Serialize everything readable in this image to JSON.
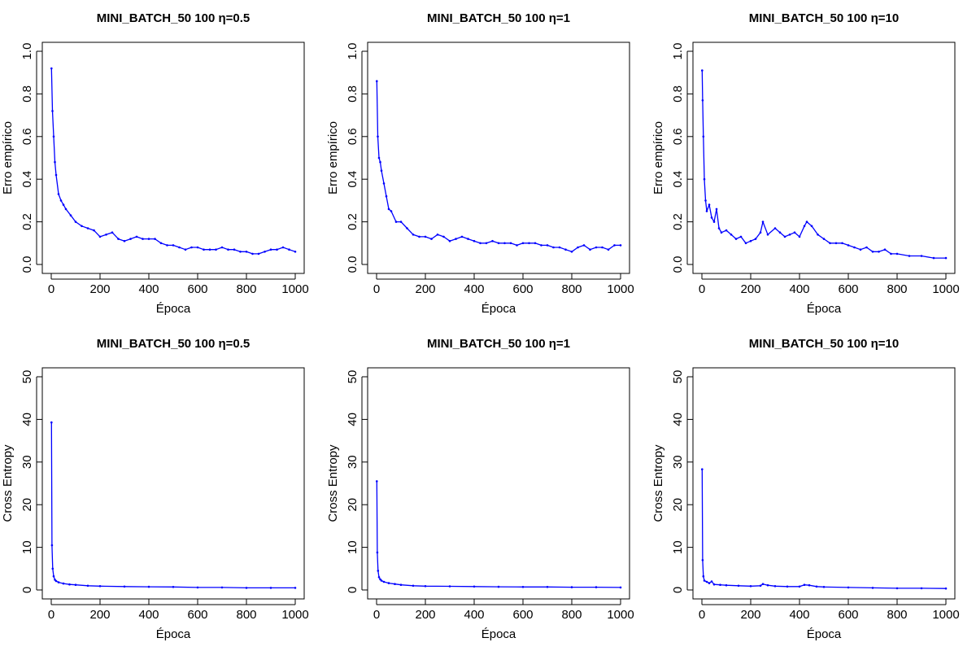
{
  "colors": {
    "series": "#0000ff",
    "axes": "#000000",
    "background": "#ffffff"
  },
  "chart_data": [
    {
      "type": "line",
      "title": "MINI_BATCH_50 100 η=0.5",
      "xlabel": "Época",
      "ylabel": "Erro empírico",
      "xlim": [
        0,
        1000
      ],
      "ylim": [
        0,
        1.0
      ],
      "xticks": [
        0,
        200,
        400,
        600,
        800,
        1000
      ],
      "yticks": [
        0,
        0.2,
        0.4,
        0.6,
        0.8,
        1.0
      ],
      "ytick_labels": [
        "0.0",
        "0.2",
        "0.4",
        "0.6",
        "0.8",
        "1.0"
      ],
      "grid": false,
      "series": [
        {
          "x": [
            1,
            5,
            10,
            15,
            20,
            30,
            40,
            50,
            60,
            80,
            100,
            125,
            150,
            175,
            200,
            225,
            250,
            275,
            300,
            325,
            350,
            375,
            400,
            425,
            450,
            475,
            500,
            525,
            550,
            575,
            600,
            625,
            650,
            675,
            700,
            725,
            750,
            775,
            800,
            825,
            850,
            875,
            900,
            925,
            950,
            975,
            1000
          ],
          "y": [
            0.92,
            0.72,
            0.6,
            0.48,
            0.42,
            0.33,
            0.3,
            0.28,
            0.26,
            0.23,
            0.2,
            0.18,
            0.17,
            0.16,
            0.13,
            0.14,
            0.15,
            0.12,
            0.11,
            0.12,
            0.13,
            0.12,
            0.12,
            0.12,
            0.1,
            0.09,
            0.09,
            0.08,
            0.07,
            0.08,
            0.08,
            0.07,
            0.07,
            0.07,
            0.08,
            0.07,
            0.07,
            0.06,
            0.06,
            0.05,
            0.05,
            0.06,
            0.07,
            0.07,
            0.08,
            0.07,
            0.06
          ]
        }
      ]
    },
    {
      "type": "line",
      "title": "MINI_BATCH_50 100 η=1",
      "xlabel": "Época",
      "ylabel": "Erro empírico",
      "xlim": [
        0,
        1000
      ],
      "ylim": [
        0,
        1.0
      ],
      "xticks": [
        0,
        200,
        400,
        600,
        800,
        1000
      ],
      "yticks": [
        0,
        0.2,
        0.4,
        0.6,
        0.8,
        1.0
      ],
      "ytick_labels": [
        "0.0",
        "0.2",
        "0.4",
        "0.6",
        "0.8",
        "1.0"
      ],
      "grid": false,
      "series": [
        {
          "x": [
            1,
            5,
            10,
            15,
            20,
            30,
            40,
            50,
            60,
            80,
            100,
            125,
            150,
            175,
            200,
            225,
            250,
            275,
            300,
            325,
            350,
            375,
            400,
            425,
            450,
            475,
            500,
            525,
            550,
            575,
            600,
            625,
            650,
            675,
            700,
            725,
            750,
            775,
            800,
            825,
            850,
            875,
            900,
            925,
            950,
            975,
            1000
          ],
          "y": [
            0.86,
            0.6,
            0.5,
            0.48,
            0.44,
            0.38,
            0.32,
            0.26,
            0.25,
            0.2,
            0.2,
            0.17,
            0.14,
            0.13,
            0.13,
            0.12,
            0.14,
            0.13,
            0.11,
            0.12,
            0.13,
            0.12,
            0.11,
            0.1,
            0.1,
            0.11,
            0.1,
            0.1,
            0.1,
            0.09,
            0.1,
            0.1,
            0.1,
            0.09,
            0.09,
            0.08,
            0.08,
            0.07,
            0.06,
            0.08,
            0.09,
            0.07,
            0.08,
            0.08,
            0.07,
            0.09,
            0.09
          ]
        }
      ]
    },
    {
      "type": "line",
      "title": "MINI_BATCH_50 100 η=10",
      "xlabel": "Época",
      "ylabel": "Erro empírico",
      "xlim": [
        0,
        1000
      ],
      "ylim": [
        0,
        1.0
      ],
      "xticks": [
        0,
        200,
        400,
        600,
        800,
        1000
      ],
      "yticks": [
        0,
        0.2,
        0.4,
        0.6,
        0.8,
        1.0
      ],
      "ytick_labels": [
        "0.0",
        "0.2",
        "0.4",
        "0.6",
        "0.8",
        "1.0"
      ],
      "grid": false,
      "series": [
        {
          "x": [
            1,
            3,
            6,
            10,
            15,
            20,
            30,
            40,
            50,
            60,
            70,
            80,
            100,
            120,
            140,
            160,
            180,
            200,
            220,
            240,
            250,
            270,
            300,
            320,
            340,
            360,
            380,
            400,
            420,
            430,
            450,
            475,
            500,
            525,
            550,
            575,
            600,
            625,
            650,
            675,
            700,
            725,
            750,
            775,
            800,
            850,
            900,
            950,
            1000
          ],
          "y": [
            0.91,
            0.77,
            0.6,
            0.4,
            0.3,
            0.25,
            0.28,
            0.22,
            0.2,
            0.26,
            0.17,
            0.15,
            0.16,
            0.14,
            0.12,
            0.13,
            0.1,
            0.11,
            0.12,
            0.15,
            0.2,
            0.14,
            0.17,
            0.15,
            0.13,
            0.14,
            0.15,
            0.13,
            0.18,
            0.2,
            0.18,
            0.14,
            0.12,
            0.1,
            0.1,
            0.1,
            0.09,
            0.08,
            0.07,
            0.08,
            0.06,
            0.06,
            0.07,
            0.05,
            0.05,
            0.04,
            0.04,
            0.03,
            0.03
          ]
        }
      ]
    },
    {
      "type": "line",
      "title": "MINI_BATCH_50 100 η=0.5",
      "xlabel": "Época",
      "ylabel": "Cross Entropy",
      "xlim": [
        0,
        1000
      ],
      "ylim": [
        0,
        50
      ],
      "xticks": [
        0,
        200,
        400,
        600,
        800,
        1000
      ],
      "yticks": [
        0,
        10,
        20,
        30,
        40,
        50
      ],
      "ytick_labels": [
        "0",
        "10",
        "20",
        "30",
        "40",
        "50"
      ],
      "grid": false,
      "series": [
        {
          "x": [
            1,
            3,
            6,
            10,
            15,
            20,
            30,
            50,
            75,
            100,
            150,
            200,
            300,
            400,
            500,
            600,
            700,
            800,
            900,
            1000
          ],
          "y": [
            39.3,
            10.5,
            5.0,
            3.2,
            2.4,
            2.1,
            1.8,
            1.5,
            1.3,
            1.2,
            1.0,
            0.9,
            0.8,
            0.75,
            0.7,
            0.6,
            0.6,
            0.5,
            0.5,
            0.5
          ]
        }
      ]
    },
    {
      "type": "line",
      "title": "MINI_BATCH_50 100 η=1",
      "xlabel": "Época",
      "ylabel": "Cross Entropy",
      "xlim": [
        0,
        1000
      ],
      "ylim": [
        0,
        50
      ],
      "xticks": [
        0,
        200,
        400,
        600,
        800,
        1000
      ],
      "yticks": [
        0,
        10,
        20,
        30,
        40,
        50
      ],
      "ytick_labels": [
        "0",
        "10",
        "20",
        "30",
        "40",
        "50"
      ],
      "grid": false,
      "series": [
        {
          "x": [
            1,
            3,
            6,
            10,
            15,
            20,
            30,
            50,
            75,
            100,
            150,
            200,
            300,
            400,
            500,
            600,
            700,
            800,
            900,
            1000
          ],
          "y": [
            25.5,
            8.8,
            4.5,
            3.0,
            2.5,
            2.2,
            1.9,
            1.6,
            1.4,
            1.2,
            1.0,
            0.9,
            0.85,
            0.8,
            0.75,
            0.7,
            0.7,
            0.65,
            0.65,
            0.6
          ]
        }
      ]
    },
    {
      "type": "line",
      "title": "MINI_BATCH_50 100 η=10",
      "xlabel": "Época",
      "ylabel": "Cross Entropy",
      "xlim": [
        0,
        1000
      ],
      "ylim": [
        0,
        50
      ],
      "xticks": [
        0,
        200,
        400,
        600,
        800,
        1000
      ],
      "yticks": [
        0,
        10,
        20,
        30,
        40,
        50
      ],
      "ytick_labels": [
        "0",
        "10",
        "20",
        "30",
        "40",
        "50"
      ],
      "grid": false,
      "series": [
        {
          "x": [
            1,
            3,
            6,
            10,
            20,
            30,
            40,
            50,
            75,
            100,
            150,
            200,
            240,
            250,
            270,
            300,
            350,
            400,
            420,
            440,
            470,
            500,
            600,
            700,
            800,
            900,
            1000
          ],
          "y": [
            28.3,
            7.0,
            3.2,
            2.2,
            1.9,
            1.6,
            2.0,
            1.3,
            1.2,
            1.1,
            1.0,
            0.9,
            1.0,
            1.4,
            1.1,
            0.9,
            0.8,
            0.8,
            1.2,
            1.1,
            0.8,
            0.7,
            0.6,
            0.5,
            0.4,
            0.4,
            0.35
          ]
        }
      ]
    }
  ]
}
